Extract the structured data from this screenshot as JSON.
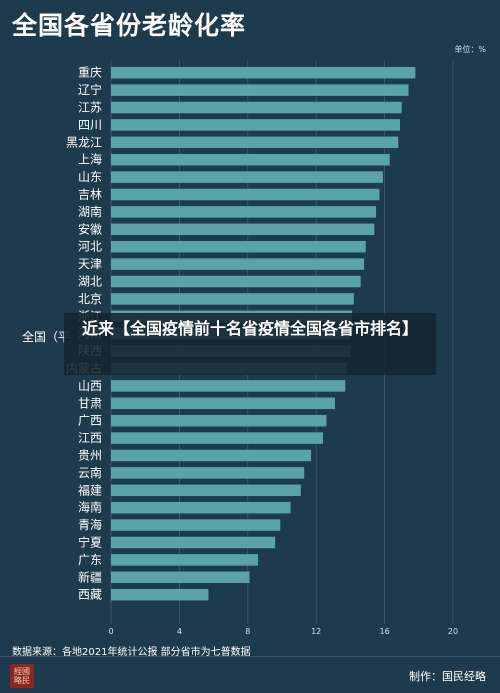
{
  "header": {
    "title": "全国各省份老龄化率",
    "unit": "单位：%"
  },
  "overlay": {
    "headline": "近来【全国疫情前十名省疫情全国各省市排名】"
  },
  "footer": {
    "source": "数据来源：各地2021年统计公报  部分省市为七普数据",
    "producer": "制作：国民经略",
    "logo_text": "经国略民"
  },
  "colors": {
    "background": "#1e3a4d",
    "bar": "#5aa3a6",
    "gridline": "#3e6074"
  },
  "chart_data": {
    "type": "bar",
    "orientation": "horizontal",
    "title": "全国各省份老龄化率",
    "unit": "单位：%",
    "categories": [
      "重庆",
      "辽宁",
      "江苏",
      "四川",
      "黑龙江",
      "上海",
      "山东",
      "吉林",
      "湖南",
      "安徽",
      "河北",
      "天津",
      "湖北",
      "北京",
      "浙江",
      "河南",
      "陕西",
      "内蒙古",
      "山西",
      "甘肃",
      "广西",
      "江西",
      "贵州",
      "云南",
      "福建",
      "海南",
      "青海",
      "宁夏",
      "广东",
      "新疆",
      "西藏"
    ],
    "values": [
      17.8,
      17.4,
      17.0,
      16.9,
      16.8,
      16.3,
      15.9,
      15.7,
      15.5,
      15.4,
      14.9,
      14.8,
      14.6,
      14.2,
      14.1,
      14.0,
      14.0,
      13.8,
      13.7,
      13.1,
      12.6,
      12.4,
      11.7,
      11.3,
      11.1,
      10.5,
      9.9,
      9.6,
      8.6,
      8.1,
      5.7
    ],
    "reference_label": "全国（平",
    "xticks": [
      "0",
      "4",
      "8",
      "12",
      "16",
      "20"
    ],
    "xlim": [
      0,
      20
    ],
    "grid": true
  }
}
